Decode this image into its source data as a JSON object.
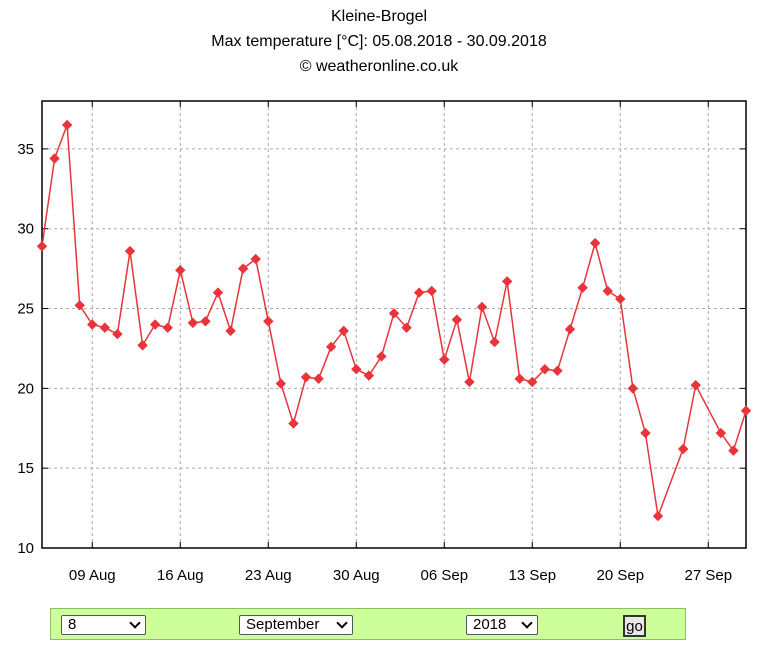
{
  "header": {
    "station": "Kleine-Brogel",
    "subtitle": "Max temperature [°C]: 05.08.2018 - 30.09.2018",
    "credit": "© weatheronline.co.uk"
  },
  "chart_data": {
    "type": "line",
    "title": "Kleine-Brogel",
    "subtitle": "Max temperature [°C]: 05.08.2018 - 30.09.2018",
    "xlabel": "",
    "ylabel": "",
    "ylim": [
      10,
      38
    ],
    "yticks": [
      10,
      15,
      20,
      25,
      30,
      35
    ],
    "ytick_labels": [
      "10",
      "15",
      "20",
      "25",
      "30",
      "35"
    ],
    "xlim": [
      "2018-08-05",
      "2018-09-30"
    ],
    "xtick_dates": [
      "2018-08-09",
      "2018-08-16",
      "2018-08-23",
      "2018-08-30",
      "2018-09-06",
      "2018-09-13",
      "2018-09-20",
      "2018-09-27"
    ],
    "xtick_labels": [
      "09 Aug",
      "16 Aug",
      "23 Aug",
      "30 Aug",
      "06 Sep",
      "13 Sep",
      "20 Sep",
      "27 Sep"
    ],
    "grid": true,
    "legend": "none",
    "color": "#e8343a",
    "series": [
      {
        "points": [
          [
            "2018-08-05",
            28.9
          ],
          [
            "2018-08-06",
            34.4
          ],
          [
            "2018-08-07",
            36.5
          ],
          [
            "2018-08-08",
            25.2
          ],
          [
            "2018-08-09",
            24.0
          ],
          [
            "2018-08-10",
            23.8
          ],
          [
            "2018-08-11",
            23.4
          ],
          [
            "2018-08-12",
            28.6
          ],
          [
            "2018-08-13",
            22.7
          ],
          [
            "2018-08-14",
            24.0
          ],
          [
            "2018-08-15",
            23.8
          ],
          [
            "2018-08-16",
            27.4
          ],
          [
            "2018-08-17",
            24.1
          ],
          [
            "2018-08-18",
            24.2
          ],
          [
            "2018-08-19",
            26.0
          ],
          [
            "2018-08-20",
            23.6
          ],
          [
            "2018-08-21",
            27.5
          ],
          [
            "2018-08-22",
            28.1
          ],
          [
            "2018-08-23",
            24.2
          ],
          [
            "2018-08-24",
            20.3
          ],
          [
            "2018-08-25",
            17.8
          ],
          [
            "2018-08-26",
            20.7
          ],
          [
            "2018-08-27",
            20.6
          ],
          [
            "2018-08-28",
            22.6
          ],
          [
            "2018-08-29",
            23.6
          ],
          [
            "2018-08-30",
            21.2
          ],
          [
            "2018-08-31",
            20.8
          ],
          [
            "2018-09-01",
            22.0
          ],
          [
            "2018-09-02",
            24.7
          ],
          [
            "2018-09-03",
            23.8
          ],
          [
            "2018-09-04",
            26.0
          ],
          [
            "2018-09-05",
            26.1
          ],
          [
            "2018-09-06",
            21.8
          ],
          [
            "2018-09-07",
            24.3
          ],
          [
            "2018-09-08",
            20.4
          ],
          [
            "2018-09-09",
            25.1
          ],
          [
            "2018-09-10",
            22.9
          ],
          [
            "2018-09-11",
            26.7
          ],
          [
            "2018-09-12",
            20.6
          ],
          [
            "2018-09-13",
            20.4
          ],
          [
            "2018-09-14",
            21.2
          ],
          [
            "2018-09-15",
            21.1
          ],
          [
            "2018-09-16",
            23.7
          ],
          [
            "2018-09-17",
            26.3
          ],
          [
            "2018-09-18",
            29.1
          ],
          [
            "2018-09-19",
            26.1
          ],
          [
            "2018-09-20",
            25.6
          ],
          [
            "2018-09-21",
            20.0
          ],
          [
            "2018-09-22",
            17.2
          ],
          [
            "2018-09-23",
            12.0
          ],
          [
            "2018-09-25",
            16.2
          ],
          [
            "2018-09-26",
            20.2
          ],
          [
            "2018-09-28",
            17.2
          ],
          [
            "2018-09-29",
            16.1
          ],
          [
            "2018-09-30",
            18.6
          ]
        ]
      }
    ]
  },
  "form": {
    "day_value": "8",
    "month_value": "September",
    "year_value": "2018",
    "go_label": "go"
  }
}
